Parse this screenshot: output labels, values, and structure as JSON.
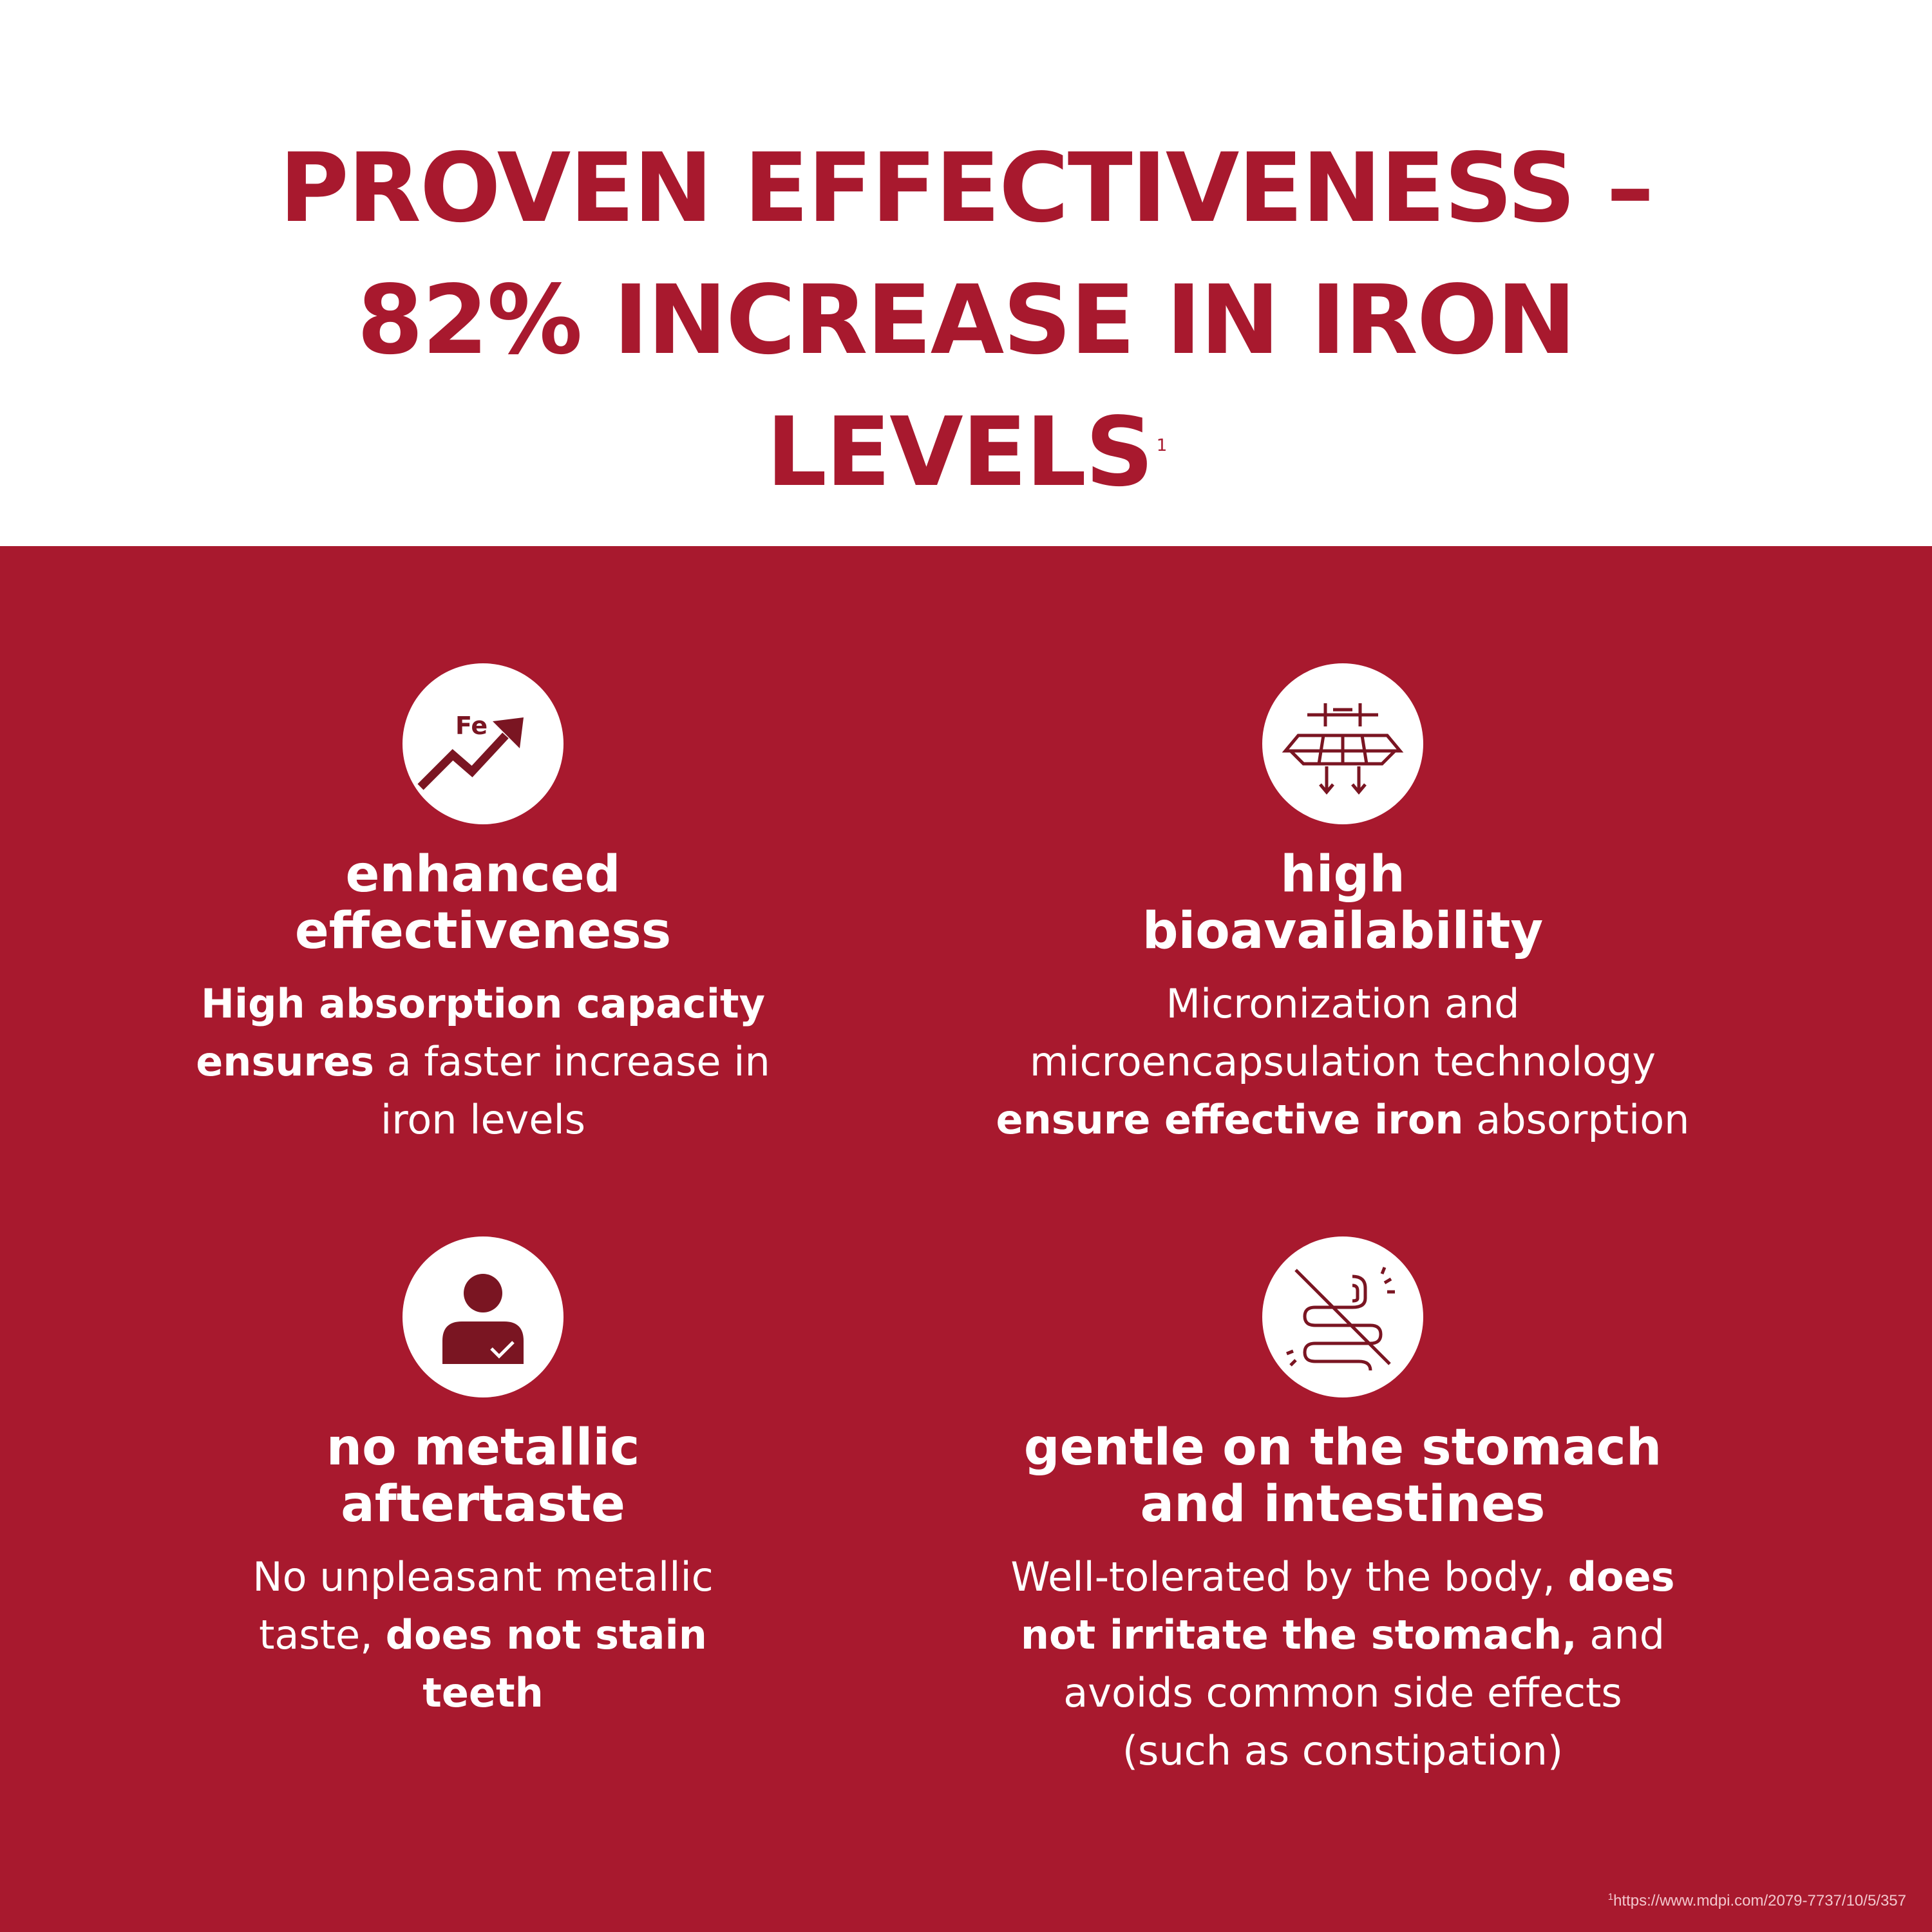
{
  "colors": {
    "brand_red": "#a8192e",
    "icon_dark": "#7a1522",
    "white": "#ffffff"
  },
  "header": {
    "title_line1": "PROVEN EFFECTIVENESS –",
    "title_line2": "82% INCREASE IN IRON",
    "title_line3": "LEVELS",
    "title_sup": "1"
  },
  "features": [
    {
      "icon": "fe-growth-arrow-icon",
      "icon_text": "Fe",
      "title_line1": "enhanced",
      "title_line2": "effectiveness",
      "desc_bold1": "High absorption capacity",
      "desc_bold2": "ensures",
      "desc_text2": " a faster increase in",
      "desc_text3": "iron levels"
    },
    {
      "icon": "bioavailability-layers-icon",
      "title_line1": "high",
      "title_line2": "bioavailability",
      "desc_text1": "Micronization and",
      "desc_text2": "microencapsulation technology",
      "desc_bold3": "ensure effective iron",
      "desc_text3": " absorption"
    },
    {
      "icon": "person-check-icon",
      "title_line1": "no metallic",
      "title_line2": "aftertaste",
      "desc_text1": "No unpleasant metallic",
      "desc_text2": "taste, ",
      "desc_bold2": "does not stain",
      "desc_bold3": "teeth"
    },
    {
      "icon": "intestines-crossed-icon",
      "title_line1": "gentle on the stomach",
      "title_line2": "and intestines",
      "desc_text1": "Well-tolerated by the body, ",
      "desc_bold1": "does",
      "desc_bold2": "not irritate the stomach,",
      "desc_text2": " and",
      "desc_text3": "avoids common side effects",
      "desc_text4": "(such as constipation)"
    }
  ],
  "footnote": {
    "sup": "1",
    "text": "https://www.mdpi.com/2079-7737/10/5/357"
  }
}
